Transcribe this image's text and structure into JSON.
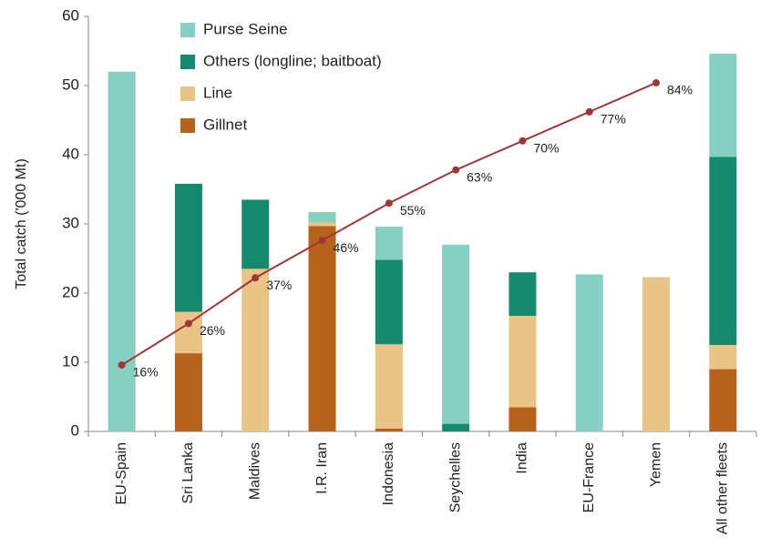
{
  "chart_data": {
    "type": "bar",
    "stacked": true,
    "y_label": "Total catch ('000 Mt)",
    "categories": [
      "EU-Spain",
      "Sri Lanka",
      "Maldives",
      "I.R. Iran",
      "Indonesia",
      "Seychelles",
      "India",
      "EU-France",
      "Yemen",
      "All other fleets"
    ],
    "series": [
      {
        "name": "Purse Seine",
        "color": "#85d0c1",
        "values": [
          52,
          0,
          0,
          1.5,
          4.8,
          25.9,
          0,
          22.7,
          0,
          14.9
        ]
      },
      {
        "name": "Others (longline; baitboat)",
        "color": "#168a6c",
        "values": [
          0,
          18.5,
          10,
          0,
          12.2,
          1.1,
          6.3,
          0,
          0,
          27.2
        ]
      },
      {
        "name": "Line",
        "color": "#e9c487",
        "values": [
          0,
          6,
          23.5,
          0.5,
          12.2,
          0,
          13.2,
          0,
          22.3,
          3.5
        ]
      },
      {
        "name": "Gillnet",
        "color": "#b4621c",
        "values": [
          0,
          11.3,
          0,
          29.7,
          0.4,
          0,
          3.5,
          0,
          0,
          9
        ]
      }
    ],
    "line": {
      "color": "#a33535",
      "axis": "y2",
      "values": [
        16,
        26,
        37,
        46,
        55,
        63,
        70,
        77,
        84
      ],
      "value_labels": [
        "16%",
        "26%",
        "37%",
        "46%",
        "55%",
        "63%",
        "70%",
        "77%",
        "84%"
      ]
    },
    "ylim": [
      0,
      60
    ],
    "yticks": [
      0,
      10,
      20,
      30,
      40,
      50,
      60
    ],
    "y2lim": [
      0,
      100
    ],
    "legend": "upper left",
    "grid": false
  }
}
